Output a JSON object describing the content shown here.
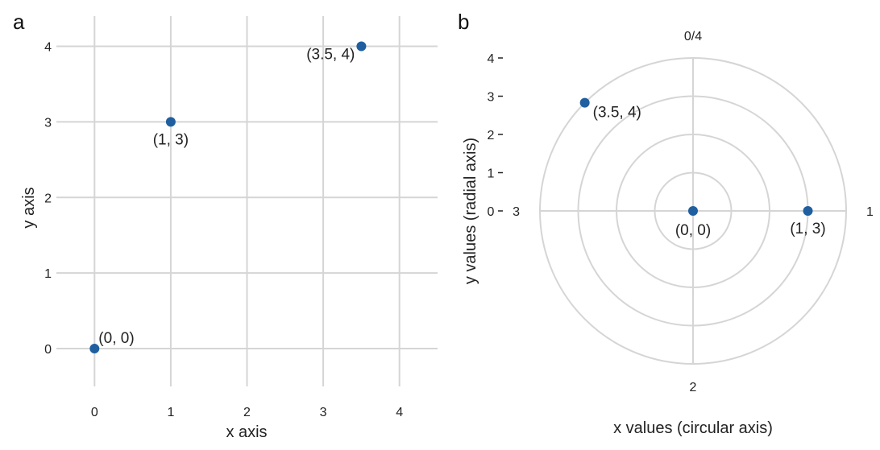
{
  "chart_data": [
    {
      "panel": "a",
      "type": "scatter",
      "coordinate_system": "cartesian",
      "xlabel": "x axis",
      "ylabel": "y axis",
      "xlim": [
        -0.5,
        4.5
      ],
      "ylim": [
        -0.5,
        4.4
      ],
      "xticks": [
        0,
        1,
        2,
        3,
        4
      ],
      "yticks": [
        0,
        1,
        2,
        3,
        4
      ],
      "grid": true,
      "points": [
        {
          "x": 0,
          "y": 0,
          "label": "(0, 0)"
        },
        {
          "x": 1,
          "y": 3,
          "label": "(1, 3)"
        },
        {
          "x": 3.5,
          "y": 4,
          "label": "(3.5, 4)"
        }
      ],
      "point_color": "#1f5fa0",
      "grid_color": "#d5d5d5"
    },
    {
      "panel": "b",
      "type": "scatter",
      "coordinate_system": "polar",
      "xlabel": "x values (circular axis)",
      "ylabel": "y values (radial axis)",
      "angular_range": [
        0,
        4
      ],
      "angular_tick_labels": [
        "0/4",
        "1",
        "2",
        "3"
      ],
      "radial_range": [
        0,
        4
      ],
      "radial_ticks": [
        0,
        1,
        2,
        3,
        4
      ],
      "grid": true,
      "points": [
        {
          "x": 0,
          "y": 0,
          "label": "(0, 0)"
        },
        {
          "x": 1,
          "y": 3,
          "label": "(1, 3)"
        },
        {
          "x": 3.5,
          "y": 4,
          "label": "(3.5, 4)"
        }
      ],
      "point_color": "#1f5fa0",
      "grid_color": "#d5d5d5"
    }
  ]
}
